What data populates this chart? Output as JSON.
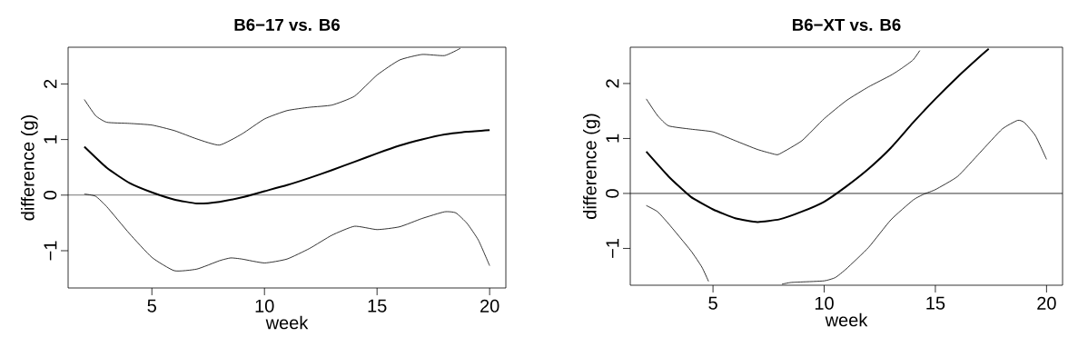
{
  "chart_data": [
    {
      "type": "line",
      "title": "B6−17 vs. B6",
      "xlabel": "week",
      "ylabel": "difference (g)",
      "xlim": [
        1.28,
        20.72
      ],
      "ylim": [
        -1.67,
        2.66
      ],
      "xticks": [
        5,
        10,
        15,
        20
      ],
      "yticks": [
        {
          "value": -1,
          "label": "−1"
        },
        0,
        1,
        2
      ],
      "grid": false,
      "marker": "none",
      "line_style": "solid",
      "ref_lines": [
        {
          "axis": "y",
          "value": 0,
          "color": "#000000"
        }
      ],
      "series": [
        {
          "color": "#000000",
          "x": [
            2,
            3,
            4,
            5,
            6,
            7,
            8,
            9,
            10,
            11,
            12,
            13,
            14,
            15,
            16,
            17,
            18,
            19,
            20
          ],
          "values": [
            0.87,
            0.49,
            0.22,
            0.05,
            -0.08,
            -0.15,
            -0.12,
            -0.04,
            0.07,
            0.18,
            0.31,
            0.45,
            0.6,
            0.75,
            0.89,
            1.0,
            1.09,
            1.14,
            1.17
          ]
        },
        {
          "color": "#000000",
          "x": [
            2,
            2.5,
            3,
            4,
            5,
            6,
            7,
            8,
            9,
            10,
            11,
            12,
            13,
            14,
            15,
            16,
            17,
            18,
            18.7
          ],
          "values": [
            1.72,
            1.43,
            1.31,
            1.29,
            1.26,
            1.16,
            1.01,
            0.9,
            1.1,
            1.37,
            1.52,
            1.58,
            1.62,
            1.78,
            2.16,
            2.43,
            2.53,
            2.51,
            2.64
          ]
        },
        {
          "color": "#000000",
          "x": [
            2,
            2.5,
            3,
            4,
            5,
            6,
            7,
            8,
            8.5,
            9,
            10,
            11,
            12,
            13,
            14,
            15,
            16,
            17,
            18,
            18.5,
            19,
            19.5,
            20
          ],
          "values": [
            0.02,
            -0.02,
            -0.21,
            -0.69,
            -1.12,
            -1.36,
            -1.33,
            -1.18,
            -1.13,
            -1.15,
            -1.22,
            -1.15,
            -0.96,
            -0.72,
            -0.56,
            -0.62,
            -0.57,
            -0.42,
            -0.3,
            -0.32,
            -0.51,
            -0.81,
            -1.27
          ]
        }
      ]
    },
    {
      "type": "line",
      "title": "B6−XT vs. B6",
      "xlabel": "week",
      "ylabel": "difference (g)",
      "xlim": [
        1.28,
        20.72
      ],
      "ylim": [
        -1.67,
        2.66
      ],
      "xticks": [
        5,
        10,
        15,
        20
      ],
      "yticks": [
        {
          "value": -1,
          "label": "−1"
        },
        0,
        1,
        2
      ],
      "grid": false,
      "marker": "none",
      "line_style": "solid",
      "ref_lines": [
        {
          "axis": "y",
          "value": 0,
          "color": "#000000"
        }
      ],
      "series": [
        {
          "color": "#000000",
          "x": [
            2,
            3,
            4,
            5,
            6,
            7,
            8,
            9,
            10,
            11,
            12,
            13,
            14,
            15,
            16,
            17,
            17.4
          ],
          "values": [
            0.76,
            0.31,
            -0.06,
            -0.29,
            -0.45,
            -0.52,
            -0.47,
            -0.33,
            -0.15,
            0.13,
            0.45,
            0.83,
            1.29,
            1.72,
            2.12,
            2.49,
            2.63
          ]
        },
        {
          "color": "#000000",
          "x": [
            2,
            2.5,
            3,
            4,
            5,
            6,
            7,
            7.8,
            8,
            9,
            10,
            11,
            12,
            13,
            13.5,
            14,
            14.3
          ],
          "values": [
            1.72,
            1.42,
            1.23,
            1.17,
            1.12,
            0.96,
            0.8,
            0.71,
            0.72,
            0.96,
            1.36,
            1.69,
            1.94,
            2.15,
            2.28,
            2.43,
            2.6
          ]
        },
        {
          "color": "#000000",
          "x": [
            2,
            2.5,
            3,
            4,
            4.5,
            4.8,
            6.5,
            8.1,
            8.5,
            9,
            10,
            10.5,
            11,
            12,
            13,
            14,
            14.5,
            15,
            16,
            17,
            18,
            18.7,
            19,
            19.5,
            20
          ],
          "values": [
            -0.22,
            -0.33,
            -0.55,
            -1.04,
            -1.34,
            -1.6,
            null,
            -1.65,
            -1.62,
            -1.61,
            -1.59,
            -1.53,
            -1.37,
            -0.98,
            -0.48,
            -0.12,
            -0.01,
            0.07,
            0.31,
            0.74,
            1.17,
            1.33,
            1.29,
            1.05,
            0.62
          ]
        }
      ]
    }
  ]
}
